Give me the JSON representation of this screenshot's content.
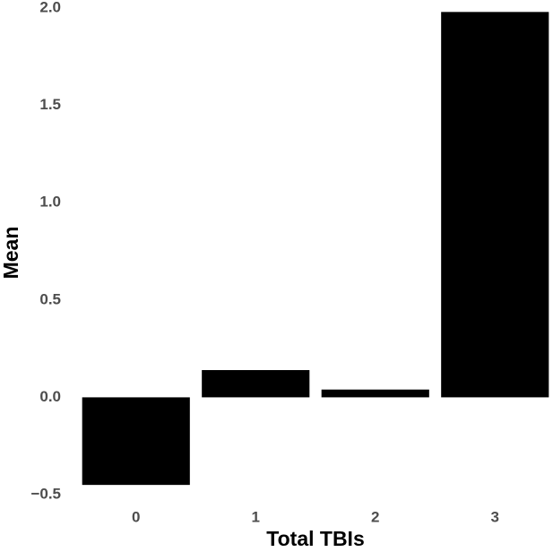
{
  "chart_data": {
    "type": "bar",
    "x_label": "Total TBIs",
    "y_label": "Mean",
    "categories": [
      "0",
      "1",
      "2",
      "3"
    ],
    "values": [
      -0.45,
      0.14,
      0.04,
      1.98
    ],
    "color": "#000000",
    "ylim": [
      -0.5,
      2.0
    ],
    "yticks": [
      {
        "value": -0.5,
        "label": "−0.5"
      },
      {
        "value": 0,
        "label": "0.0"
      },
      {
        "value": 0.5,
        "label": "0.5"
      },
      {
        "value": 1,
        "label": "1.0"
      },
      {
        "value": 1.5,
        "label": "1.5"
      },
      {
        "value": 2,
        "label": "2.0"
      }
    ],
    "grid": false
  }
}
